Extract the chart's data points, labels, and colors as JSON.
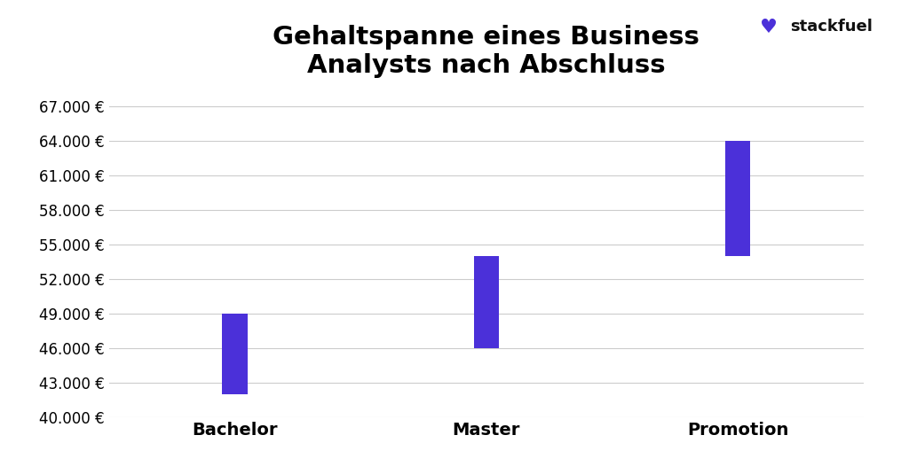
{
  "title": "Gehaltspanne eines Business\nAnalysts nach Abschluss",
  "categories": [
    "Bachelor",
    "Master",
    "Promotion"
  ],
  "bar_bottoms": [
    42000,
    46000,
    54000
  ],
  "bar_tops": [
    49000,
    54000,
    64000
  ],
  "bar_color": "#4B30D9",
  "bar_width": 0.1,
  "ylim": [
    40000,
    68000
  ],
  "yticks": [
    40000,
    43000,
    46000,
    49000,
    52000,
    55000,
    58000,
    61000,
    64000,
    67000
  ],
  "background_color": "#ffffff",
  "title_fontsize": 21,
  "tick_fontsize": 12,
  "xlabel_fontsize": 14,
  "logo_text": "stackfuel",
  "logo_icon": "📚",
  "grid_color": "#cccccc"
}
